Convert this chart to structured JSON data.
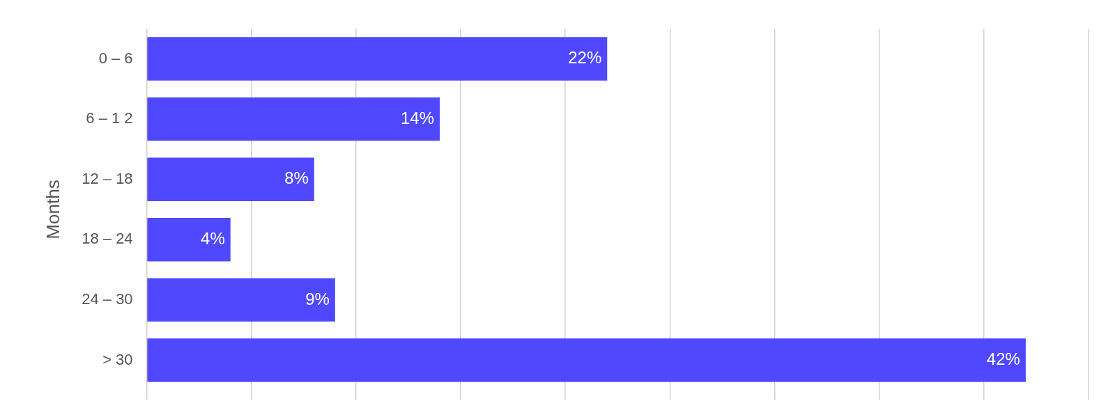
{
  "chart_data": {
    "type": "bar",
    "orientation": "horizontal",
    "ylabel": "Months",
    "categories": [
      "0 – 6",
      "6 – 1 2",
      "12 – 18",
      "18 – 24",
      "24 – 30",
      "> 30"
    ],
    "values": [
      22,
      14,
      8,
      4,
      9,
      42
    ],
    "value_labels": [
      "22%",
      "14%",
      "8%",
      "4%",
      "9%",
      "42%"
    ],
    "color": "#5048ff",
    "xlim": [
      0,
      45
    ],
    "xticks": [
      {
        "value": 0,
        "label": null
      },
      {
        "value": 5,
        "label": null
      },
      {
        "value": 10,
        "label": null
      },
      {
        "value": 15,
        "label": null
      },
      {
        "value": 20,
        "label": null
      },
      {
        "value": 25,
        "label": null
      },
      {
        "value": 30,
        "label": null
      },
      {
        "value": 35,
        "label": null
      },
      {
        "value": 40,
        "label": null
      },
      {
        "value": 45,
        "label": null
      }
    ],
    "grid": "x",
    "tick_labels": "y",
    "legend": false
  }
}
